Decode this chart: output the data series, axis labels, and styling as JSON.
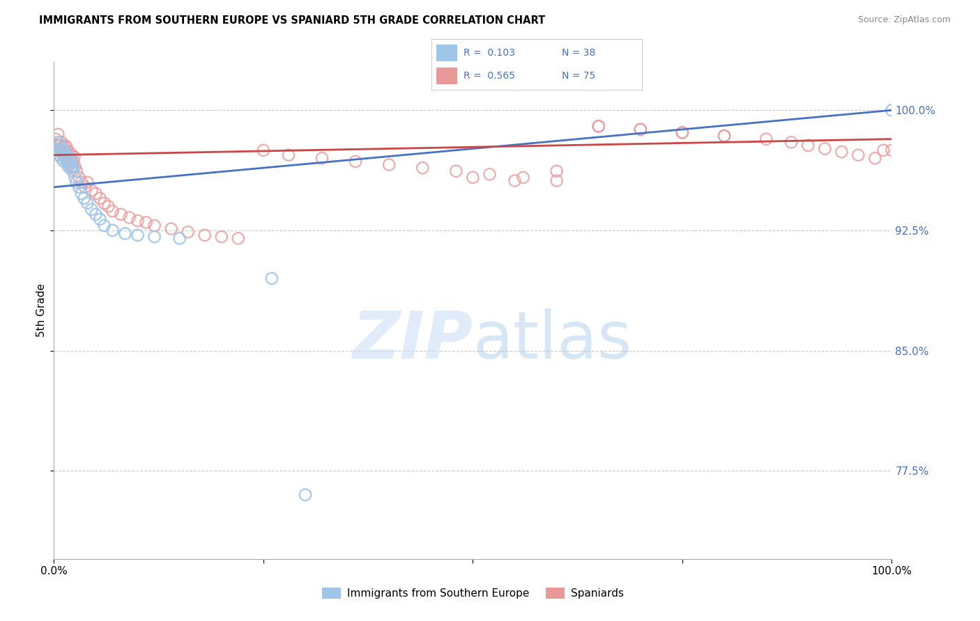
{
  "title": "IMMIGRANTS FROM SOUTHERN EUROPE VS SPANIARD 5TH GRADE CORRELATION CHART",
  "source": "Source: ZipAtlas.com",
  "ylabel": "5th Grade",
  "xlim": [
    0.0,
    1.0
  ],
  "ylim": [
    0.72,
    1.03
  ],
  "yticks": [
    0.775,
    0.85,
    0.925,
    1.0
  ],
  "ytick_labels": [
    "77.5%",
    "85.0%",
    "92.5%",
    "100.0%"
  ],
  "blue_R": 0.103,
  "blue_N": 38,
  "pink_R": 0.565,
  "pink_N": 75,
  "blue_color": "#9fc5e8",
  "pink_color": "#ea9999",
  "trend_blue": "#4472c4",
  "trend_pink": "#cc4444",
  "label_color": "#4472c4",
  "blue_x": [
    0.003,
    0.005,
    0.006,
    0.007,
    0.008,
    0.009,
    0.01,
    0.011,
    0.012,
    0.013,
    0.014,
    0.015,
    0.016,
    0.017,
    0.018,
    0.019,
    0.02,
    0.021,
    0.022,
    0.023,
    0.025,
    0.027,
    0.03,
    0.033,
    0.036,
    0.04,
    0.045,
    0.05,
    0.055,
    0.06,
    0.07,
    0.085,
    0.1,
    0.12,
    0.15,
    0.26,
    0.3,
    1.0
  ],
  "blue_y": [
    0.975,
    0.98,
    0.972,
    0.976,
    0.978,
    0.97,
    0.975,
    0.972,
    0.968,
    0.974,
    0.97,
    0.972,
    0.968,
    0.965,
    0.97,
    0.966,
    0.964,
    0.968,
    0.962,
    0.965,
    0.958,
    0.955,
    0.952,
    0.948,
    0.945,
    0.942,
    0.938,
    0.935,
    0.932,
    0.928,
    0.925,
    0.923,
    0.922,
    0.921,
    0.92,
    0.895,
    0.76,
    1.0
  ],
  "pink_x": [
    0.002,
    0.003,
    0.004,
    0.005,
    0.006,
    0.007,
    0.008,
    0.009,
    0.01,
    0.011,
    0.012,
    0.013,
    0.014,
    0.015,
    0.016,
    0.017,
    0.018,
    0.019,
    0.02,
    0.021,
    0.022,
    0.023,
    0.024,
    0.025,
    0.027,
    0.03,
    0.033,
    0.037,
    0.04,
    0.045,
    0.05,
    0.055,
    0.06,
    0.065,
    0.07,
    0.08,
    0.09,
    0.1,
    0.11,
    0.12,
    0.14,
    0.16,
    0.18,
    0.2,
    0.22,
    0.25,
    0.28,
    0.32,
    0.36,
    0.4,
    0.44,
    0.48,
    0.52,
    0.56,
    0.6,
    0.65,
    0.7,
    0.75,
    0.8,
    0.85,
    0.88,
    0.9,
    0.92,
    0.94,
    0.96,
    0.98,
    0.99,
    1.0,
    0.5,
    0.55,
    0.6,
    0.65,
    0.7,
    0.75,
    0.8
  ],
  "pink_y": [
    0.982,
    0.978,
    0.975,
    0.985,
    0.972,
    0.978,
    0.975,
    0.98,
    0.974,
    0.977,
    0.972,
    0.978,
    0.974,
    0.977,
    0.972,
    0.968,
    0.974,
    0.97,
    0.968,
    0.972,
    0.965,
    0.968,
    0.971,
    0.965,
    0.962,
    0.958,
    0.955,
    0.952,
    0.955,
    0.95,
    0.948,
    0.945,
    0.942,
    0.94,
    0.937,
    0.935,
    0.933,
    0.931,
    0.93,
    0.928,
    0.926,
    0.924,
    0.922,
    0.921,
    0.92,
    0.975,
    0.972,
    0.97,
    0.968,
    0.966,
    0.964,
    0.962,
    0.96,
    0.958,
    0.956,
    0.99,
    0.988,
    0.986,
    0.984,
    0.982,
    0.98,
    0.978,
    0.976,
    0.974,
    0.972,
    0.97,
    0.975,
    0.975,
    0.958,
    0.956,
    0.962,
    0.99,
    0.988,
    0.986,
    0.984
  ]
}
